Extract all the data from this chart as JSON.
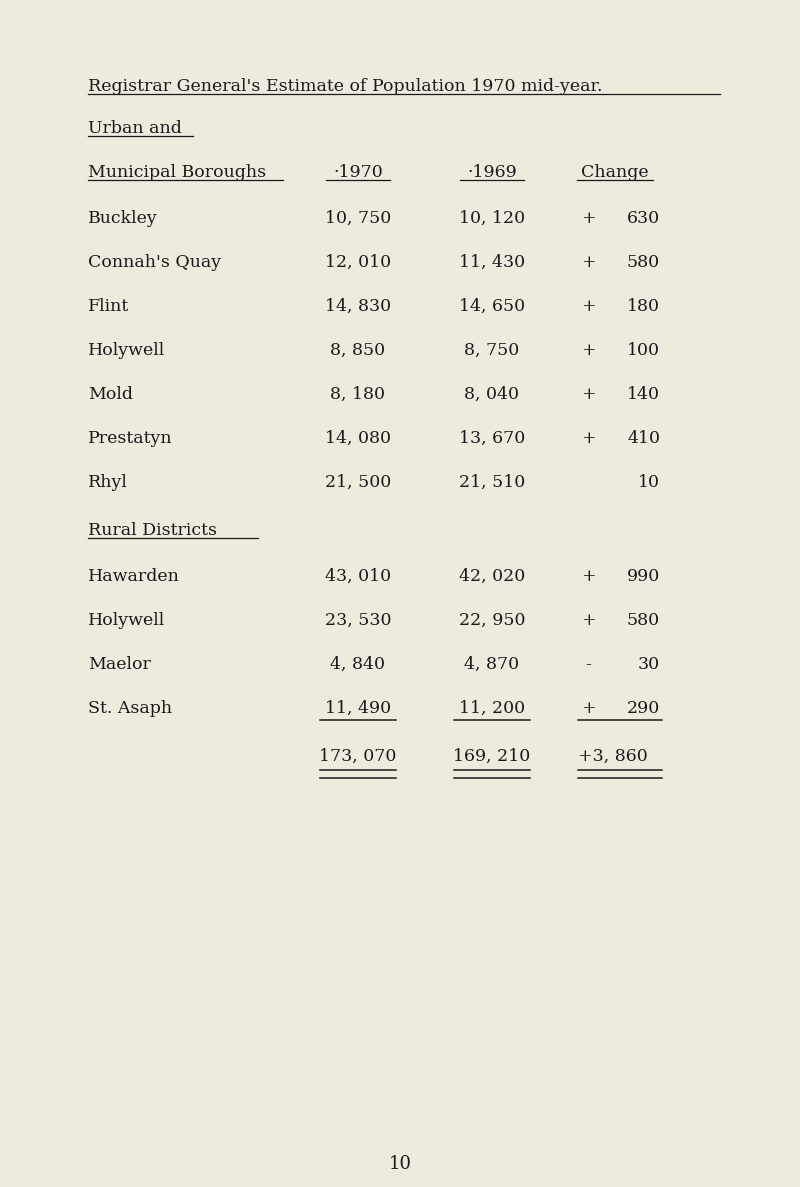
{
  "title": "Registrar General's Estimate of Population 1970 mid-year.",
  "section1_header": "Urban and",
  "section1_sub": "Municipal Boroughs",
  "col1_header": "·1970",
  "col2_header": "·1969",
  "col3_header": "Change",
  "urban_rows": [
    [
      "Buckley",
      "10, 750",
      "10, 120",
      "+",
      "630"
    ],
    [
      "Connah's Quay",
      "12, 010",
      "11, 430",
      "+",
      "580"
    ],
    [
      "Flint",
      "14, 830",
      "14, 650",
      "+",
      "180"
    ],
    [
      "Holywell",
      "8, 850",
      "8, 750",
      "+",
      "100"
    ],
    [
      "Mold",
      "8, 180",
      "8, 040",
      "+",
      "140"
    ],
    [
      "Prestatyn",
      "14, 080",
      "13, 670",
      "+",
      "410"
    ],
    [
      "Rhyl",
      "21, 500",
      "21, 510",
      "",
      "10"
    ]
  ],
  "section2_header": "Rural Districts",
  "rural_rows": [
    [
      "Hawarden",
      "43, 010",
      "42, 020",
      "+",
      "990"
    ],
    [
      "Holywell",
      "23, 530",
      "22, 950",
      "+",
      "580"
    ],
    [
      "Maelor",
      "4, 840",
      "4, 870",
      "-",
      "30"
    ],
    [
      "St. Asaph",
      "11, 490",
      "11, 200",
      "+",
      "290"
    ]
  ],
  "total_row": [
    "173, 070",
    "169, 210",
    "+3, 860"
  ],
  "page_number": "10",
  "bg_color": "#edeade",
  "text_color": "#1a1a1a",
  "underline_color": "#1a1a1a"
}
